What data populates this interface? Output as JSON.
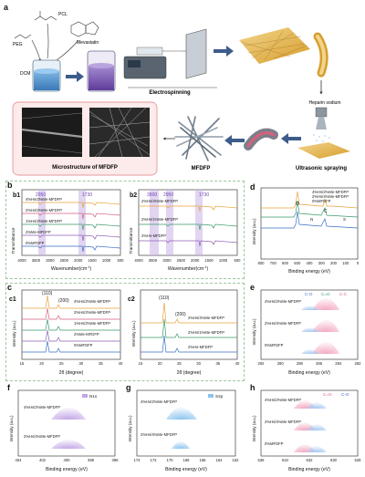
{
  "panel_a": {
    "letter": "a",
    "reagents": [
      "PCL",
      "PEG",
      "Mevastatin",
      "DCM"
    ],
    "process": [
      "Electrospinning",
      "Heparin sodium",
      "Ultrasonic spraying"
    ],
    "micro_caption": "Microstructure of MFDFP",
    "product": "MFDFP"
  },
  "panel_b": {
    "letter": "b",
    "b1": {
      "tag": "b1",
      "series": [
        "4%Hs/2%Me-MFDFP",
        "2%Hs/2%Me-MFDFP",
        "1%Hs/2%Me-MFDFP",
        "2%Me-MFDFP",
        "0%MFDFP"
      ],
      "annotations": [
        "2950",
        "1730"
      ],
      "ylabel": "Transmittance",
      "xlabel": "Wavenumber(cm",
      "xlabel_sup": "-1",
      "xlabel_end": ")",
      "xticks": [
        "4000",
        "3500",
        "3000",
        "2500",
        "2000",
        "1500",
        "1000",
        "500"
      ]
    },
    "b2": {
      "tag": "b2",
      "series": [
        "2%Hs/4%Me-MFDFP",
        "2%Hs/1%Me-MFDFP",
        "2%Hs-MFDFP"
      ],
      "annotations": [
        "3500",
        "2950",
        "1730"
      ],
      "ylabel": "Transmittance",
      "xlabel": "Wavenumber(cm",
      "xlabel_sup": "-1",
      "xlabel_end": ")",
      "xticks": [
        "4000",
        "3500",
        "3000",
        "2500",
        "2000",
        "1500",
        "1000",
        "500"
      ]
    }
  },
  "panel_c": {
    "letter": "c",
    "c1": {
      "tag": "c1",
      "series": [
        "4%Hs/2%Me-MFDFP",
        "2%Hs/2%Me-MFDFP",
        "1%Hs/2%Me-MFDFP",
        "2%Me-MFDFP",
        "0%MFDFP"
      ],
      "peaks": [
        "(110)",
        "(200)"
      ],
      "ylabel": "Intensity (a.u.)",
      "xlabel": "2θ (degree)",
      "xticks": [
        "15",
        "20",
        "25",
        "30",
        "35",
        "40"
      ]
    },
    "c2": {
      "tag": "c2",
      "series": [
        "2%Hs/4%Me-MFDFP",
        "2%Hs/1%Me-MFDFP",
        "2%Hs-MFDFP"
      ],
      "peaks": [
        "(110)",
        "(200)"
      ],
      "ylabel": "Intensity (a.u.)",
      "xlabel": "2θ (degree)",
      "xticks": [
        "15",
        "20",
        "25",
        "30",
        "35",
        "40"
      ]
    }
  },
  "panel_d": {
    "letter": "d",
    "series": [
      "4%Hs/2%Me-MFDFP",
      "2%Hs/4%Me-MFDFP",
      "0%MFDFP"
    ],
    "peaks": [
      "O",
      "C",
      "S",
      "N"
    ],
    "ylabel": "Intensity (a.u.)",
    "xlabel": "Binding energy (eV)",
    "xticks": [
      "800",
      "700",
      "600",
      "500",
      "400",
      "300",
      "200",
      "100",
      "0"
    ]
  },
  "panel_e": {
    "letter": "e",
    "legend": [
      "C-O",
      "C=O",
      "C-C"
    ],
    "series": [
      "4%Hs/2%Me-MFDFP",
      "2%Hs/4%Me-MFDFP",
      "0%MFDFP"
    ],
    "ylabel": "Intensity (a.u.)",
    "xlabel": "Binding energy (eV)",
    "xticks": [
      "292",
      "290",
      "288",
      "286",
      "284",
      "282"
    ]
  },
  "panel_f": {
    "letter": "f",
    "legend": [
      "N1s"
    ],
    "series": [
      "4%Hs/2%Me-MFDFP",
      "2%Hs/4%Me-MFDFP"
    ],
    "ylabel": "Intensity (a.u.)",
    "xlabel": "Binding energy (eV)",
    "xticks": [
      "404",
      "402",
      "400",
      "398",
      "396"
    ]
  },
  "panel_g": {
    "letter": "g",
    "legend": [
      "S2p"
    ],
    "series": [
      "4%Hs/2%Me-MFDFP",
      "2%Hs/4%Me-MFDFP"
    ],
    "ylabel": "Intensity (a.u.)",
    "xlabel": "Binding energy (eV)",
    "xticks": [
      "174",
      "172",
      "170",
      "168",
      "166",
      "164",
      "162"
    ]
  },
  "panel_h": {
    "letter": "h",
    "legend": [
      "C=O",
      "C-O"
    ],
    "series": [
      "4%Hs/2%Me-MFDFP",
      "2%Hs/4%Me-MFDFP",
      "0%MFDFP"
    ],
    "ylabel": "Intensity (a.u.)",
    "xlabel": "Binding energy (eV)",
    "xticks": [
      "536",
      "534",
      "532",
      "530",
      "528"
    ]
  },
  "colors": {
    "orange": "#e8a23a",
    "green": "#3a9a6a",
    "purple": "#8e5fb5",
    "blue": "#3a6fc4",
    "pink": "#d5607d",
    "dash_border": "#9bc79b",
    "red_border": "#e39b9b"
  }
}
